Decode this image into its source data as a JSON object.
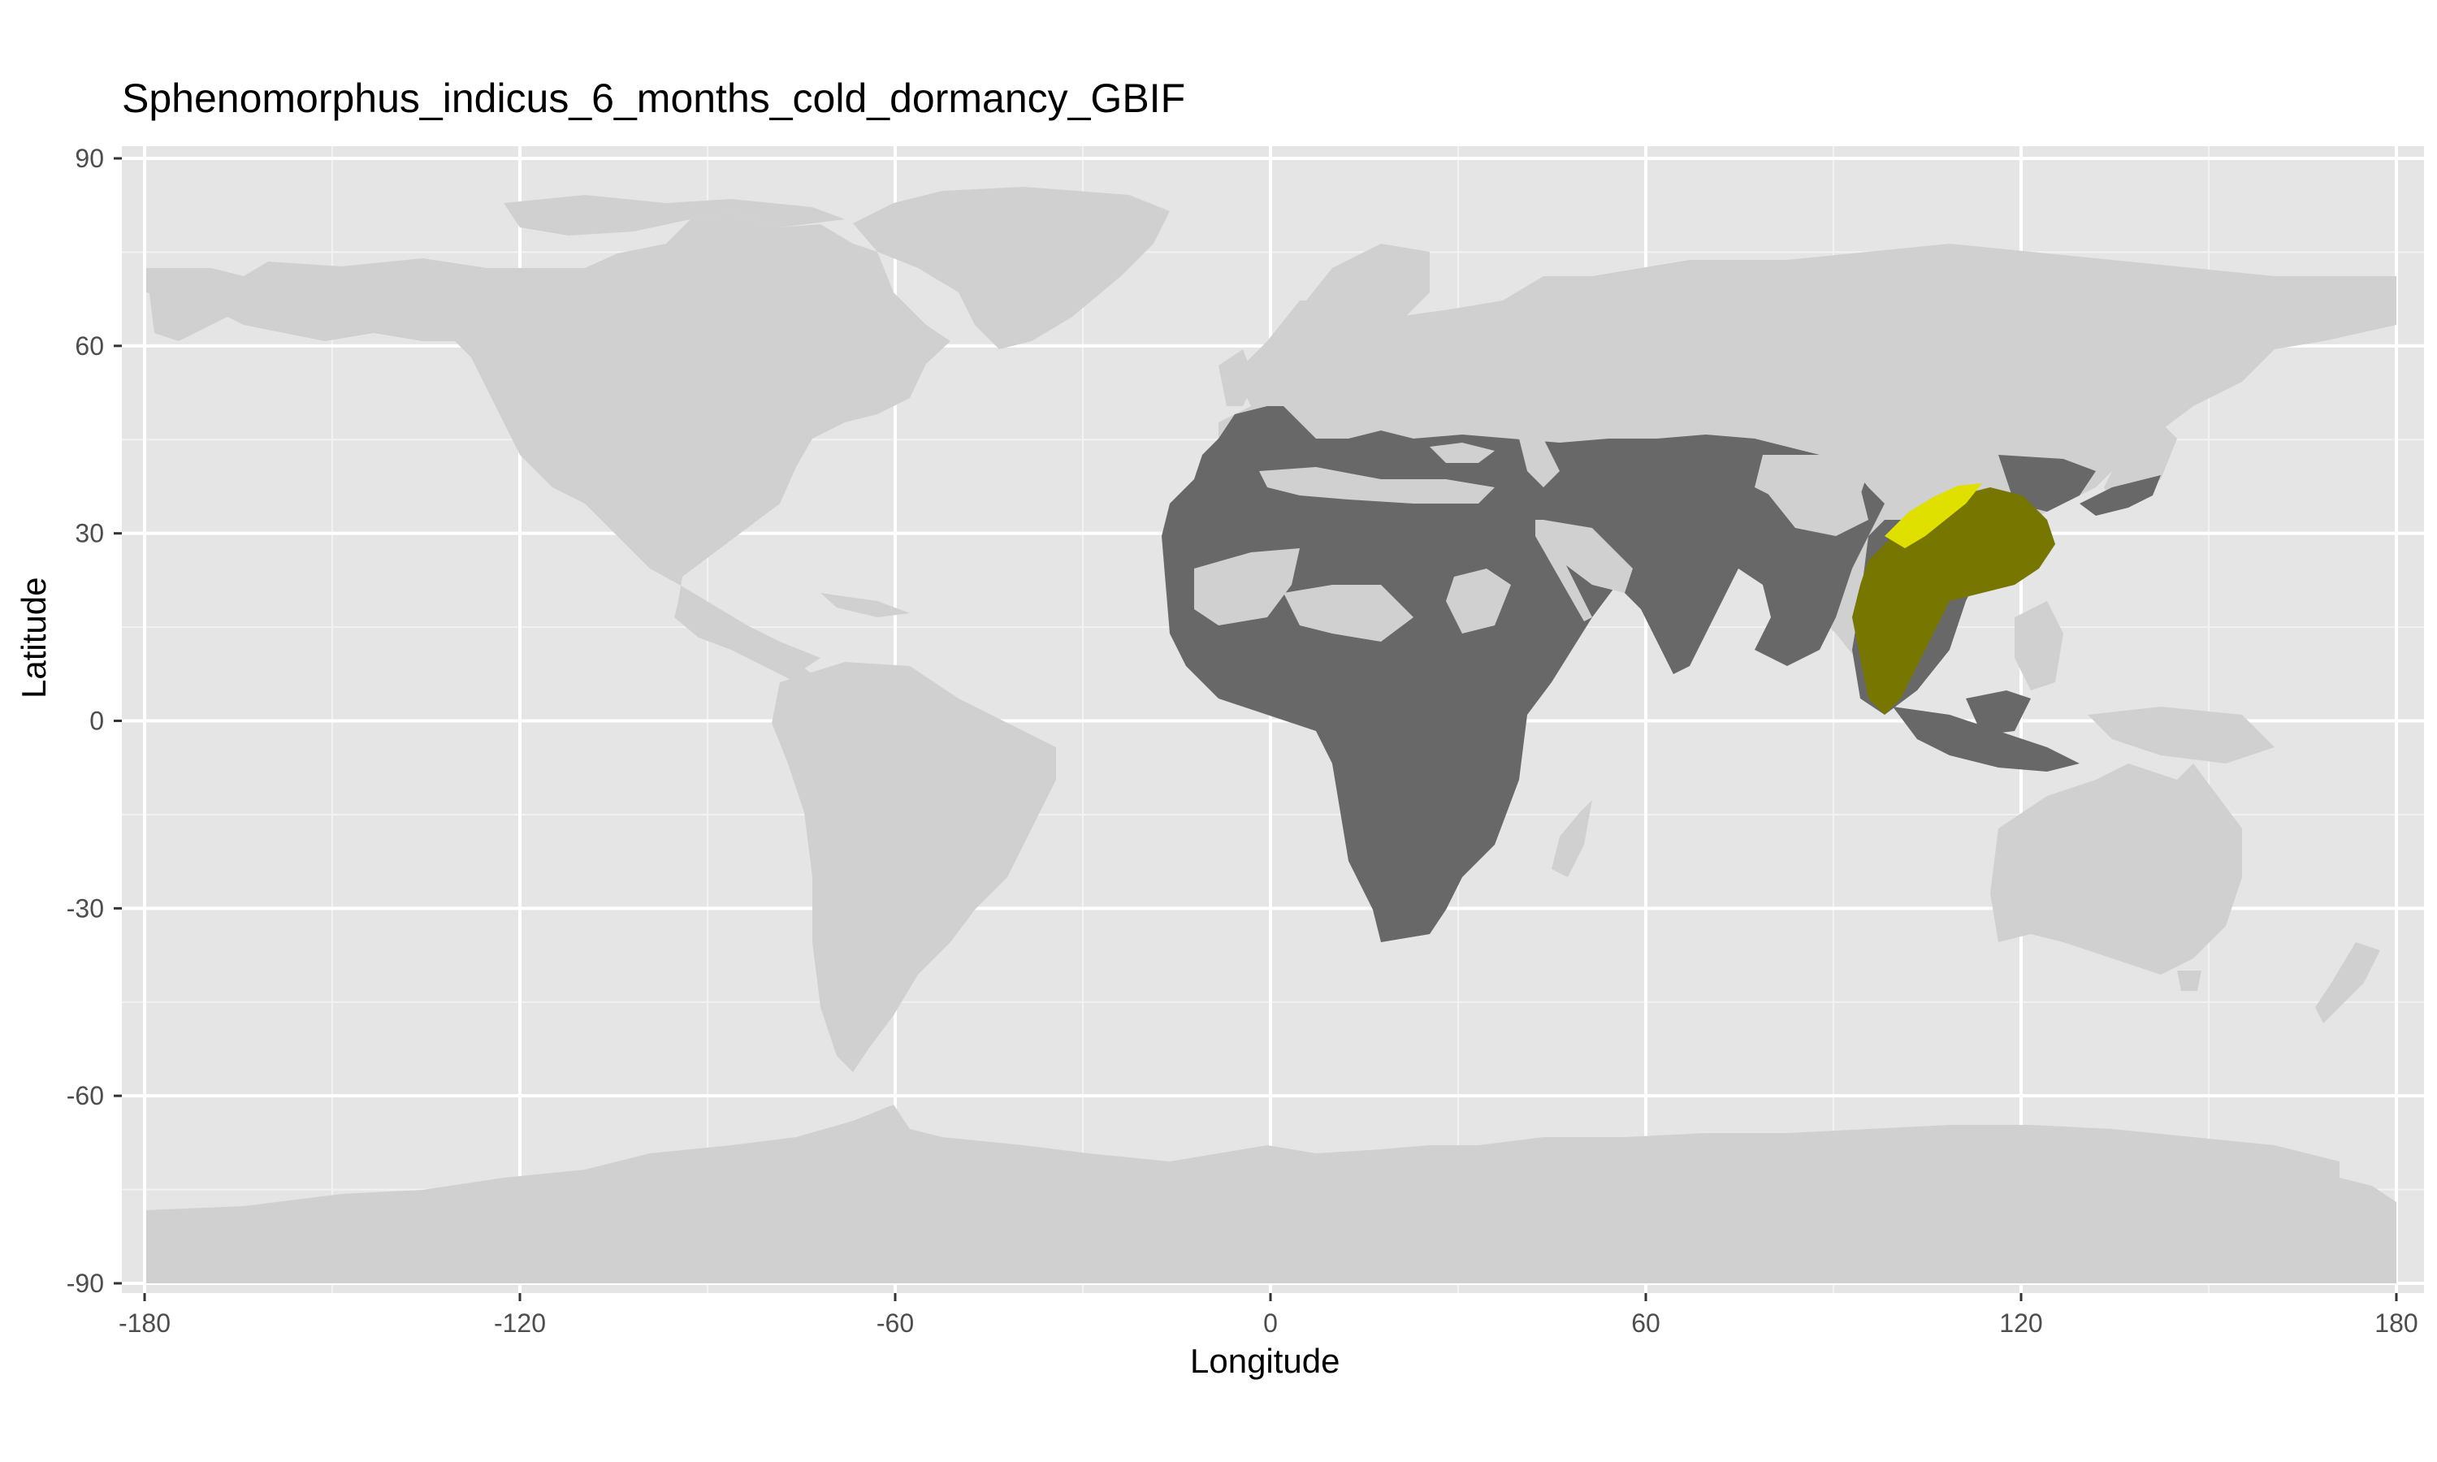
{
  "title": "Sphenomorphus_indicus_6_months_cold_dormancy_GBIF",
  "x_axis": {
    "label": "Longitude",
    "range": [
      -180,
      180
    ],
    "ticks": [
      "-180",
      "-120",
      "-60",
      "0",
      "60",
      "120",
      "180"
    ]
  },
  "y_axis": {
    "label": "Latitude",
    "range": [
      -90,
      90
    ],
    "ticks": [
      "-90",
      "-60",
      "-30",
      "0",
      "30",
      "60",
      "90"
    ]
  },
  "colors": {
    "panel_background": "#e5e5e5",
    "grid": "#ffffff",
    "land_unsuitable": "#d0d0d0",
    "land_suitable_with_dormancy": "#686868",
    "predicted_range_overlap": "#767600",
    "observed_range": "#e0e000"
  },
  "layers": [
    "world-land",
    "dormancy-suitable-region",
    "predicted-range-overlap",
    "observed-range-only"
  ]
}
